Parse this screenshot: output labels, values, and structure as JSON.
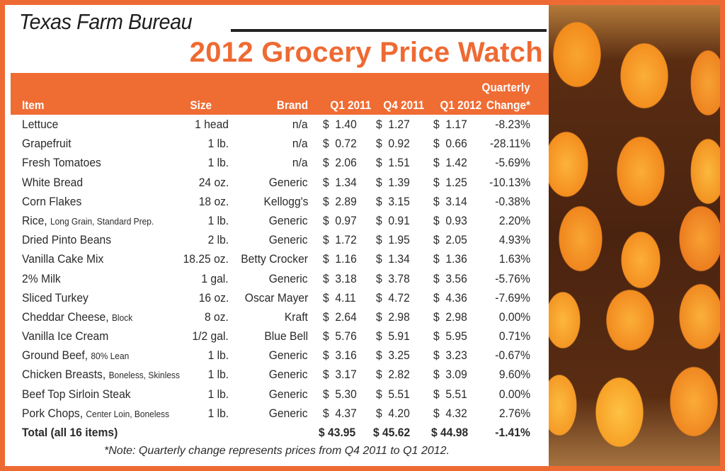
{
  "header": {
    "organization": "Texas Farm Bureau",
    "title": "2012 Grocery Price Watch"
  },
  "table": {
    "columns": {
      "item": "Item",
      "size": "Size",
      "brand": "Brand",
      "q1_2011": "Q1 2011",
      "q4_2011": "Q4 2011",
      "q1_2012": "Q1 2012",
      "change_line1": "Quarterly",
      "change_line2": "Change*"
    },
    "rows": [
      {
        "item": "Lettuce",
        "detail": "",
        "size": "1 head",
        "brand": "n/a",
        "q1_2011": "$  1.40",
        "q4_2011": "$  1.27",
        "q1_2012": "$  1.17",
        "change": "-8.23%"
      },
      {
        "item": "Grapefruit",
        "detail": "",
        "size": "1 lb.",
        "brand": "n/a",
        "q1_2011": "$  0.72",
        "q4_2011": "$  0.92",
        "q1_2012": "$  0.66",
        "change": "-28.11%"
      },
      {
        "item": "Fresh Tomatoes",
        "detail": "",
        "size": "1 lb.",
        "brand": "n/a",
        "q1_2011": "$  2.06",
        "q4_2011": "$  1.51",
        "q1_2012": "$  1.42",
        "change": "-5.69%"
      },
      {
        "item": "White Bread",
        "detail": "",
        "size": "24 oz.",
        "brand": "Generic",
        "q1_2011": "$  1.34",
        "q4_2011": "$  1.39",
        "q1_2012": "$  1.25",
        "change": "-10.13%"
      },
      {
        "item": "Corn Flakes",
        "detail": "",
        "size": "18 oz.",
        "brand": "Kellogg's",
        "q1_2011": "$  2.89",
        "q4_2011": "$  3.15",
        "q1_2012": "$  3.14",
        "change": "-0.38%"
      },
      {
        "item": "Rice,",
        "detail": "Long Grain, Standard Prep.",
        "size": "1 lb.",
        "brand": "Generic",
        "q1_2011": "$  0.97",
        "q4_2011": "$  0.91",
        "q1_2012": "$  0.93",
        "change": "2.20%"
      },
      {
        "item": "Dried Pinto Beans",
        "detail": "",
        "size": "2 lb.",
        "brand": "Generic",
        "q1_2011": "$  1.72",
        "q4_2011": "$  1.95",
        "q1_2012": "$  2.05",
        "change": "4.93%"
      },
      {
        "item": "Vanilla Cake Mix",
        "detail": "",
        "size": "18.25 oz.",
        "brand": "Betty Crocker",
        "q1_2011": "$  1.16",
        "q4_2011": "$  1.34",
        "q1_2012": "$  1.36",
        "change": "1.63%"
      },
      {
        "item": "2% Milk",
        "detail": "",
        "size": "1 gal.",
        "brand": "Generic",
        "q1_2011": "$  3.18",
        "q4_2011": "$  3.78",
        "q1_2012": "$  3.56",
        "change": "-5.76%"
      },
      {
        "item": "Sliced Turkey",
        "detail": "",
        "size": "16 oz.",
        "brand": "Oscar Mayer",
        "q1_2011": "$  4.11",
        "q4_2011": "$  4.72",
        "q1_2012": "$  4.36",
        "change": "-7.69%"
      },
      {
        "item": "Cheddar Cheese,",
        "detail": "Block",
        "size": "8 oz.",
        "brand": "Kraft",
        "q1_2011": "$  2.64",
        "q4_2011": "$  2.98",
        "q1_2012": "$  2.98",
        "change": "0.00%"
      },
      {
        "item": "Vanilla Ice Cream",
        "detail": "",
        "size": "1/2 gal.",
        "brand": "Blue Bell",
        "q1_2011": "$  5.76",
        "q4_2011": "$  5.91",
        "q1_2012": "$  5.95",
        "change": "0.71%"
      },
      {
        "item": "Ground Beef,",
        "detail": "80% Lean",
        "size": "1 lb.",
        "brand": "Generic",
        "q1_2011": "$  3.16",
        "q4_2011": "$  3.25",
        "q1_2012": "$  3.23",
        "change": "-0.67%"
      },
      {
        "item": "Chicken Breasts,",
        "detail": "Boneless, Skinless",
        "size": "1 lb.",
        "brand": "Generic",
        "q1_2011": "$  3.17",
        "q4_2011": "$  2.82",
        "q1_2012": "$  3.09",
        "change": "9.60%"
      },
      {
        "item": "Beef Top Sirloin Steak",
        "detail": "",
        "size": "1 lb.",
        "brand": "Generic",
        "q1_2011": "$  5.30",
        "q4_2011": "$  5.51",
        "q1_2012": "$  5.51",
        "change": "0.00%"
      },
      {
        "item": "Pork Chops,",
        "detail": "Center Loin, Boneless",
        "size": "1 lb.",
        "brand": "Generic",
        "q1_2011": "$  4.37",
        "q4_2011": "$  4.20",
        "q1_2012": "$  4.32",
        "change": "2.76%"
      }
    ],
    "total": {
      "label": "Total (all 16 items)",
      "q1_2011": "$ 43.95",
      "q4_2011": "$ 45.62",
      "q1_2012": "$ 44.98",
      "change": "-1.41%"
    }
  },
  "note": "*Note: Quarterly change represents prices from Q4 2011 to Q1 2012.",
  "photo": {
    "subject": "grapefruit-in-basket"
  },
  "colors": {
    "accent": "#ee6a33",
    "text": "#2a2a2a"
  }
}
